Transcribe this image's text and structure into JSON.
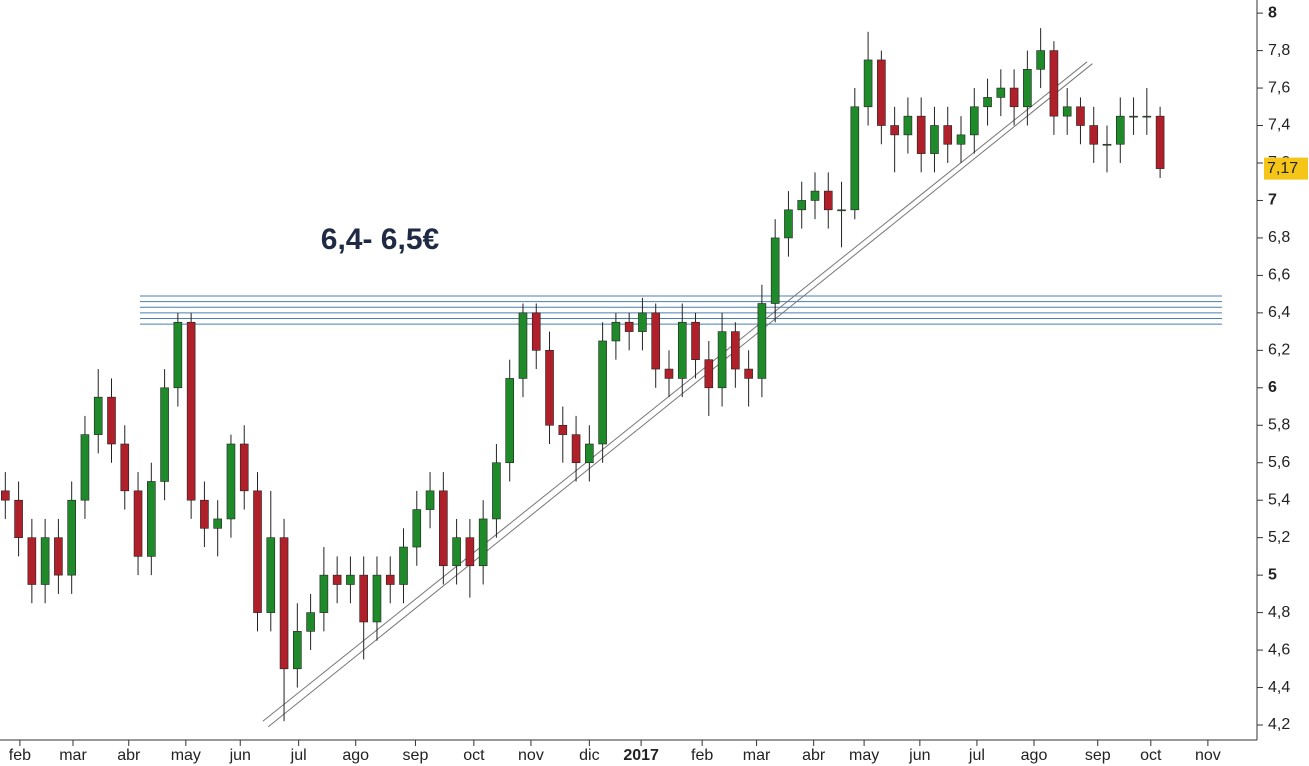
{
  "chart_data": {
    "type": "candlestick",
    "annotation": "6,4- 6,5€",
    "open": [
      5.45,
      5.4,
      5.2,
      4.95,
      5.2,
      5.0,
      5.4,
      5.75,
      5.95,
      5.7,
      5.45,
      5.1,
      5.5,
      6.0,
      6.35,
      5.4,
      5.25,
      5.3,
      5.7,
      5.45,
      4.8,
      5.2,
      4.5,
      4.7,
      4.8,
      5.0,
      4.95,
      5.0,
      4.75,
      5.0,
      4.95,
      5.15,
      5.35,
      5.45,
      5.05,
      5.2,
      5.05,
      5.3,
      5.6,
      6.05,
      6.4,
      6.2,
      5.8,
      5.75,
      5.6,
      5.7,
      6.25,
      6.35,
      6.3,
      6.4,
      6.1,
      6.05,
      6.35,
      6.15,
      6.0,
      6.3,
      6.1,
      6.05,
      6.45,
      6.8,
      6.95,
      7.0,
      7.05,
      6.95,
      6.95,
      7.5,
      7.75,
      7.4,
      7.35,
      7.45,
      7.25,
      7.4,
      7.3,
      7.35,
      7.5,
      7.55,
      7.6,
      7.5,
      7.7,
      7.8,
      7.45,
      7.5,
      7.4,
      7.3,
      7.3,
      7.45,
      7.45,
      7.45
    ],
    "high": [
      5.55,
      5.5,
      5.3,
      5.3,
      5.3,
      5.5,
      5.85,
      6.1,
      6.05,
      5.8,
      5.55,
      5.6,
      6.1,
      6.4,
      6.4,
      5.5,
      5.4,
      5.75,
      5.8,
      5.55,
      5.45,
      5.3,
      4.85,
      4.9,
      5.15,
      5.1,
      5.1,
      5.1,
      5.1,
      5.1,
      5.25,
      5.45,
      5.55,
      5.55,
      5.3,
      5.3,
      5.4,
      5.7,
      6.15,
      6.45,
      6.45,
      6.3,
      5.9,
      5.85,
      5.8,
      6.35,
      6.4,
      6.4,
      6.48,
      6.45,
      6.2,
      6.45,
      6.4,
      6.25,
      6.4,
      6.35,
      6.2,
      6.55,
      6.9,
      7.05,
      7.1,
      7.15,
      7.15,
      7.1,
      7.6,
      7.9,
      7.8,
      7.5,
      7.55,
      7.55,
      7.5,
      7.5,
      7.45,
      7.6,
      7.65,
      7.7,
      7.7,
      7.8,
      7.92,
      7.85,
      7.6,
      7.55,
      7.5,
      7.4,
      7.55,
      7.55,
      7.6,
      7.5
    ],
    "low": [
      5.3,
      5.1,
      4.85,
      4.85,
      4.9,
      4.9,
      5.3,
      5.65,
      5.6,
      5.35,
      5.0,
      5.0,
      5.4,
      5.9,
      5.3,
      5.15,
      5.1,
      5.2,
      5.35,
      4.7,
      4.7,
      4.22,
      4.4,
      4.6,
      4.7,
      4.85,
      4.85,
      4.55,
      4.65,
      4.85,
      4.85,
      5.05,
      5.25,
      4.95,
      4.95,
      4.88,
      4.95,
      5.2,
      5.5,
      5.95,
      6.1,
      5.7,
      5.6,
      5.5,
      5.5,
      5.6,
      6.15,
      6.2,
      6.2,
      6.0,
      5.95,
      5.95,
      6.05,
      5.85,
      5.9,
      6.0,
      5.9,
      5.95,
      6.35,
      6.7,
      6.85,
      6.9,
      6.85,
      6.75,
      6.9,
      7.4,
      7.3,
      7.15,
      7.25,
      7.15,
      7.15,
      7.2,
      7.2,
      7.25,
      7.4,
      7.45,
      7.4,
      7.4,
      7.6,
      7.35,
      7.35,
      7.3,
      7.2,
      7.15,
      7.2,
      7.35,
      7.35,
      7.12
    ],
    "close": [
      5.4,
      5.2,
      4.95,
      5.2,
      5.0,
      5.4,
      5.75,
      5.95,
      5.7,
      5.45,
      5.1,
      5.5,
      6.0,
      6.35,
      5.4,
      5.25,
      5.3,
      5.7,
      5.45,
      4.8,
      5.2,
      4.5,
      4.7,
      4.8,
      5.0,
      4.95,
      5.0,
      4.75,
      5.0,
      4.95,
      5.15,
      5.35,
      5.45,
      5.05,
      5.2,
      5.05,
      5.3,
      5.6,
      6.05,
      6.4,
      6.2,
      5.8,
      5.75,
      5.6,
      5.7,
      6.25,
      6.35,
      6.3,
      6.4,
      6.1,
      6.05,
      6.35,
      6.15,
      6.0,
      6.3,
      6.1,
      6.05,
      6.45,
      6.8,
      6.95,
      7.0,
      7.05,
      6.95,
      6.95,
      7.5,
      7.75,
      7.4,
      7.35,
      7.45,
      7.25,
      7.4,
      7.3,
      7.35,
      7.5,
      7.55,
      7.6,
      7.5,
      7.7,
      7.8,
      7.45,
      7.5,
      7.4,
      7.3,
      7.3,
      7.45,
      7.45,
      7.45,
      7.17
    ],
    "up_color": "#1f8a2a",
    "down_color": "#b0202a",
    "levels": [
      6.34,
      6.37,
      6.4,
      6.43,
      6.46,
      6.49
    ],
    "level_color": "#4a7fb0",
    "trendlines": [
      {
        "x": [
          19.4,
          81.5
        ],
        "y": [
          4.22,
          7.74
        ]
      },
      {
        "x": [
          19.8,
          81.9
        ],
        "y": [
          4.19,
          7.73
        ]
      }
    ],
    "last_price": {
      "value": 7.17,
      "label": "7,17"
    },
    "xlim": [
      -0.4,
      94.3
    ],
    "ylim": [
      4.12,
      8.07
    ],
    "xticks": [
      {
        "value": 1.1,
        "label": "feb"
      },
      {
        "value": 5.1,
        "label": "mar"
      },
      {
        "value": 9.3,
        "label": "abr"
      },
      {
        "value": 13.6,
        "label": "may"
      },
      {
        "value": 17.7,
        "label": "jun"
      },
      {
        "value": 22.1,
        "label": "jul"
      },
      {
        "value": 26.4,
        "label": "ago"
      },
      {
        "value": 30.9,
        "label": "sep"
      },
      {
        "value": 35.3,
        "label": "oct"
      },
      {
        "value": 39.6,
        "label": "nov"
      },
      {
        "value": 44.0,
        "label": "dic"
      },
      {
        "value": 47.9,
        "label": "2017"
      },
      {
        "value": 52.5,
        "label": "feb"
      },
      {
        "value": 56.6,
        "label": "mar"
      },
      {
        "value": 60.9,
        "label": "abr"
      },
      {
        "value": 64.7,
        "label": "may"
      },
      {
        "value": 68.9,
        "label": "jun"
      },
      {
        "value": 73.2,
        "label": "jul"
      },
      {
        "value": 77.5,
        "label": "ago"
      },
      {
        "value": 82.3,
        "label": "sep"
      },
      {
        "value": 86.3,
        "label": "oct"
      },
      {
        "value": 90.6,
        "label": "nov"
      }
    ],
    "yticks": [
      {
        "value": 4.2,
        "label": "4,2"
      },
      {
        "value": 4.4,
        "label": "4,4"
      },
      {
        "value": 4.6,
        "label": "4,6"
      },
      {
        "value": 4.8,
        "label": "4,8"
      },
      5,
      {
        "value": 5.2,
        "label": "5,2"
      },
      {
        "value": 5.4,
        "label": "5,4"
      },
      {
        "value": 5.6,
        "label": "5,6"
      },
      {
        "value": 5.8,
        "label": "5,8"
      },
      6,
      {
        "value": 6.2,
        "label": "6,2"
      },
      {
        "value": 6.4,
        "label": "6,4"
      },
      {
        "value": 6.6,
        "label": "6,6"
      },
      {
        "value": 6.8,
        "label": "6,8"
      },
      7,
      {
        "value": 7.2,
        "label": "7,2"
      },
      {
        "value": 7.4,
        "label": "7,4"
      },
      {
        "value": 7.6,
        "label": "7,6"
      },
      {
        "value": 7.8,
        "label": "7,8"
      },
      8
    ]
  }
}
